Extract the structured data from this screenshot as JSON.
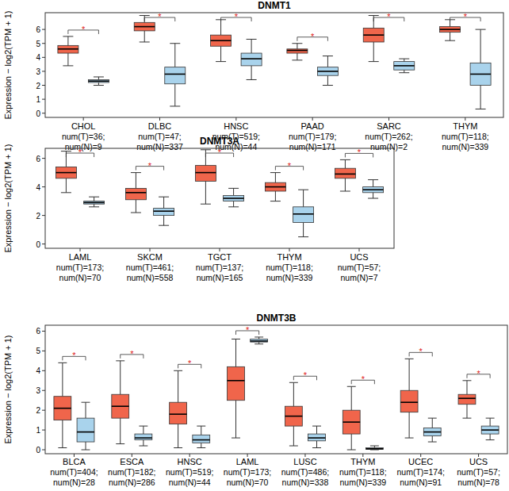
{
  "chart_data": [
    {
      "type": "box",
      "title": "DNMT1",
      "y_label": "Expression − log2(TPM + 1)",
      "categories": [
        "CHOL",
        "DLBC",
        "HNSC",
        "PAAD",
        "SARC",
        "THYM"
      ],
      "tumor_counts": [
        "num(T)=36;",
        "num(T)=47;",
        "num(T)=519;",
        "num(T)=179;",
        "num(T)=262;",
        "num(T)=118;"
      ],
      "normal_counts": [
        "num(N)=9",
        "num(N)=337",
        "num(N)=44",
        "num(N)=171",
        "num(N)=2",
        "num(N)=339"
      ],
      "significance": [
        "*",
        "*",
        "*",
        "*",
        "*",
        "*"
      ],
      "ylim": [
        -0.3,
        7.2
      ],
      "yticks": [
        0,
        1,
        2,
        3,
        4,
        5,
        6
      ],
      "series": [
        {
          "color": "#f0654b",
          "low": [
            3.4,
            5.1,
            3.7,
            3.8,
            3.7,
            5.2
          ],
          "q1": [
            4.3,
            5.9,
            4.8,
            4.3,
            5.1,
            5.8
          ],
          "median": [
            4.6,
            6.2,
            5.2,
            4.5,
            5.6,
            6.0
          ],
          "q3": [
            4.85,
            6.5,
            5.6,
            4.6,
            6.1,
            6.2
          ],
          "high": [
            5.5,
            7.0,
            6.7,
            5.0,
            7.0,
            6.7
          ]
        },
        {
          "color": "#a9d3ec",
          "low": [
            2.0,
            0.5,
            2.4,
            2.0,
            2.9,
            0.3
          ],
          "q1": [
            2.2,
            2.1,
            3.4,
            2.7,
            3.1,
            2.0
          ],
          "median": [
            2.3,
            2.8,
            3.9,
            3.0,
            3.4,
            2.8
          ],
          "q3": [
            2.4,
            3.3,
            4.3,
            3.3,
            3.7,
            3.6
          ],
          "high": [
            2.6,
            5.0,
            5.3,
            4.1,
            3.9,
            6.0
          ]
        }
      ]
    },
    {
      "type": "box",
      "title": "DNMT3A",
      "y_label": "Expression − log2(TPM + 1)",
      "categories": [
        "LAML",
        "SKCM",
        "TGCT",
        "THYM",
        "UCS"
      ],
      "tumor_counts": [
        "num(T)=173;",
        "num(T)=461;",
        "num(T)=137;",
        "num(T)=118;",
        "num(T)=57;"
      ],
      "normal_counts": [
        "num(N)=70",
        "num(N)=558",
        "num(N)=165",
        "num(N)=339",
        "num(N)=7"
      ],
      "significance": [
        "*",
        "*",
        "*",
        "*",
        "*"
      ],
      "ylim": [
        -0.3,
        6.7
      ],
      "yticks": [
        0,
        2,
        4,
        6
      ],
      "series": [
        {
          "color": "#f0654b",
          "low": [
            3.6,
            2.2,
            2.8,
            3.0,
            3.7
          ],
          "q1": [
            4.6,
            3.1,
            4.4,
            3.7,
            4.6
          ],
          "median": [
            5.0,
            3.6,
            5.0,
            4.0,
            4.9
          ],
          "q3": [
            5.4,
            3.9,
            5.5,
            4.3,
            5.3
          ],
          "high": [
            6.5,
            5.0,
            6.6,
            5.0,
            5.9
          ]
        },
        {
          "color": "#a9d3ec",
          "low": [
            2.6,
            1.3,
            2.6,
            0.5,
            3.2
          ],
          "q1": [
            2.8,
            2.0,
            3.0,
            1.5,
            3.6
          ],
          "median": [
            2.9,
            2.3,
            3.2,
            2.1,
            3.8
          ],
          "q3": [
            3.0,
            2.5,
            3.4,
            2.6,
            4.0
          ],
          "high": [
            3.3,
            3.3,
            3.9,
            3.8,
            4.5
          ]
        }
      ]
    },
    {
      "type": "box",
      "title": "DNMT3B",
      "y_label": "Expression − log2(TPM + 1)",
      "categories": [
        "BLCA",
        "ESCA",
        "HNSC",
        "LAML",
        "LUSC",
        "THYM",
        "UCEC",
        "UCS"
      ],
      "tumor_counts": [
        "num(T)=404;",
        "num(T)=182;",
        "num(T)=519;",
        "num(T)=173;",
        "num(T)=486;",
        "num(T)=118;",
        "num(T)=174;",
        "num(T)=57;"
      ],
      "normal_counts": [
        "num(N)=28",
        "num(N)=286",
        "num(N)=44",
        "num(N)=70",
        "num(N)=338",
        "num(N)=339",
        "num(N)=91",
        "num(N)=78"
      ],
      "significance": [
        "*",
        "*",
        "*",
        "*",
        "*",
        "*",
        "*",
        "*"
      ],
      "ylim": [
        -0.2,
        6.3
      ],
      "yticks": [
        0,
        1,
        2,
        3,
        4,
        5,
        6
      ],
      "series": [
        {
          "color": "#f0654b",
          "low": [
            0.1,
            0.3,
            0.1,
            0.6,
            0.2,
            0.0,
            0.6,
            1.6
          ],
          "q1": [
            1.5,
            1.6,
            1.3,
            2.5,
            1.2,
            0.8,
            1.9,
            2.3
          ],
          "median": [
            2.1,
            2.2,
            1.8,
            3.5,
            1.7,
            1.4,
            2.4,
            2.6
          ],
          "q3": [
            2.7,
            2.8,
            2.4,
            4.2,
            2.2,
            2.0,
            3.0,
            2.8
          ],
          "high": [
            4.4,
            4.5,
            4.0,
            5.6,
            3.4,
            3.2,
            4.6,
            3.5
          ]
        },
        {
          "color": "#a9d3ec",
          "low": [
            0.0,
            0.2,
            0.1,
            5.35,
            0.1,
            0.0,
            0.4,
            0.5
          ],
          "q1": [
            0.4,
            0.5,
            0.35,
            5.45,
            0.45,
            0.02,
            0.7,
            0.8
          ],
          "median": [
            0.9,
            0.6,
            0.5,
            5.5,
            0.6,
            0.05,
            0.9,
            1.0
          ],
          "q3": [
            1.6,
            0.8,
            0.75,
            5.6,
            0.8,
            0.1,
            1.1,
            1.2
          ],
          "high": [
            2.4,
            1.2,
            1.2,
            5.7,
            1.2,
            0.2,
            1.6,
            1.6
          ]
        }
      ]
    }
  ]
}
